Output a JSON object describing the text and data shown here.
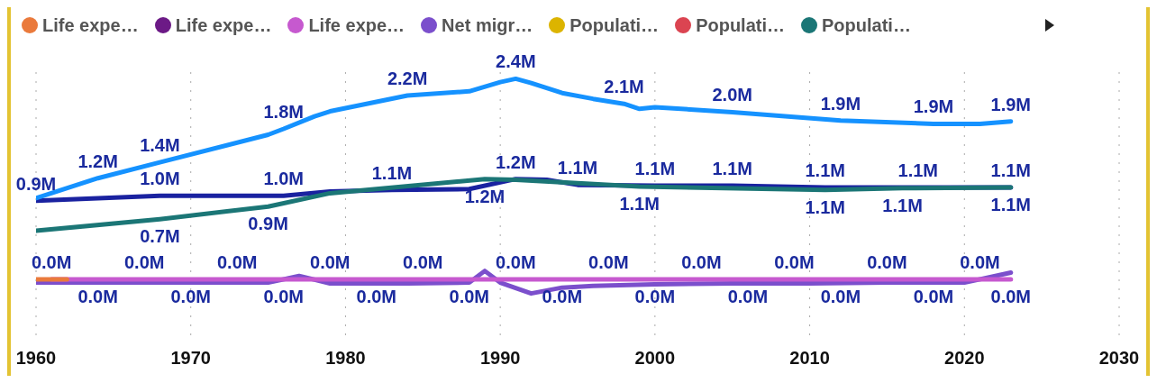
{
  "chart_data": {
    "type": "line",
    "legend": "top",
    "grid": "x",
    "xlim": [
      1960,
      2030
    ],
    "xticks": [
      1960,
      1970,
      1980,
      1990,
      2000,
      2010,
      2020,
      2030
    ],
    "series": [
      {
        "name": "Life expe…",
        "color": "#ea7a3c",
        "x": [
          1960,
          1962
        ],
        "values": [
          0,
          0
        ]
      },
      {
        "name": "Life expe…",
        "color": "#6c1a86"
      },
      {
        "name": "Life expe…",
        "color": "#c659cf",
        "x": [
          1961,
          1964,
          1967,
          1970,
          1973,
          1976,
          1979,
          1982,
          1985,
          1988,
          1991,
          1994,
          1997,
          2000,
          2003,
          2006,
          2009,
          2012,
          2015,
          2018,
          2021,
          2023
        ],
        "values": [
          0,
          0,
          0,
          0,
          0,
          0,
          0,
          0,
          0,
          0,
          0,
          0,
          0,
          0,
          0,
          0,
          0,
          0,
          0,
          0,
          0,
          0
        ],
        "value_labels": [
          "0.0M",
          "0.0M",
          "0.0M",
          "0.0M",
          "0.0M",
          "0.0M",
          "0.0M",
          "0.0M",
          "0.0M",
          "0.0M",
          "0.0M",
          "0.0M",
          "0.0M",
          "0.0M",
          "0.0M",
          "0.0M",
          "0.0M",
          "0.0M",
          "0.0M",
          "0.0M",
          "0.0M",
          "0.0M"
        ]
      },
      {
        "name": "Net migr…",
        "color": "#7b4fcc",
        "x": [
          1960,
          1965,
          1970,
          1975,
          1977,
          1979,
          1984,
          1988,
          1989,
          1990,
          1992,
          1994,
          1996,
          2000,
          2005,
          2010,
          2015,
          2020,
          2023
        ],
        "values": [
          -0.04,
          -0.04,
          -0.04,
          -0.04,
          0.04,
          -0.05,
          -0.05,
          -0.04,
          0.1,
          -0.04,
          -0.17,
          -0.1,
          -0.08,
          -0.06,
          -0.05,
          -0.05,
          -0.04,
          -0.04,
          0.08
        ]
      },
      {
        "name": "Populati…",
        "color": "#dcb400"
      },
      {
        "name": "Populati…",
        "color": "#db4451"
      },
      {
        "name": "Populati…",
        "color": "#1b7676",
        "x": [
          1960,
          1968,
          1975,
          1979,
          1982,
          1989,
          1991,
          1999,
          2011,
          2016,
          2023
        ],
        "values": [
          0.58,
          0.72,
          0.87,
          1.03,
          1.08,
          1.2,
          1.19,
          1.11,
          1.07,
          1.09,
          1.1
        ],
        "value_labels": [
          null,
          "0.7M",
          "0.9M",
          null,
          null,
          "1.2M",
          null,
          "1.1M",
          "1.1M",
          "1.1M",
          "1.1M"
        ]
      },
      {
        "color": "#1592ff",
        "x": [
          1960,
          1964,
          1968,
          1975,
          1976,
          1978,
          1979,
          1984,
          1988,
          1990,
          1991,
          1992,
          1994,
          1996,
          1998,
          1999,
          2000,
          2005,
          2012,
          2018,
          2021,
          2023
        ],
        "values": [
          0.97,
          1.21,
          1.4,
          1.73,
          1.8,
          1.95,
          2.01,
          2.2,
          2.25,
          2.36,
          2.4,
          2.35,
          2.23,
          2.16,
          2.1,
          2.04,
          2.06,
          2.0,
          1.9,
          1.86,
          1.86,
          1.89
        ],
        "value_labels": [
          null,
          "1.2M",
          "1.4M",
          null,
          "1.8M",
          null,
          null,
          "2.2M",
          null,
          null,
          "2.4M",
          null,
          null,
          null,
          "2.1M",
          null,
          null,
          "2.0M",
          "1.9M",
          "1.9M",
          null,
          "1.9M"
        ]
      },
      {
        "color": "#1a22a0",
        "x": [
          1960,
          1968,
          1976,
          1979,
          1983,
          1988,
          1991,
          1993,
          1995,
          2000,
          2005,
          2011,
          2017,
          2023
        ],
        "values": [
          0.94,
          1.0,
          1.0,
          1.05,
          1.07,
          1.08,
          1.2,
          1.19,
          1.13,
          1.12,
          1.12,
          1.1,
          1.1,
          1.1
        ],
        "value_labels": [
          "0.9M",
          "1.0M",
          "1.0M",
          null,
          "1.1M",
          null,
          "1.2M",
          null,
          "1.1M",
          "1.1M",
          "1.1M",
          "1.1M",
          "1.1M",
          "1.1M"
        ]
      }
    ]
  }
}
